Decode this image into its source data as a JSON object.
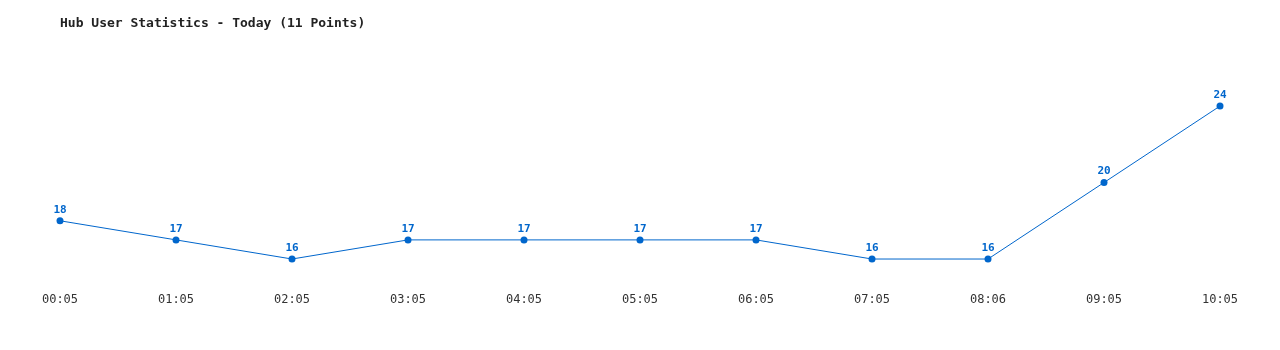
{
  "chart_data": {
    "type": "line",
    "title": "Hub User Statistics - Today (11 Points)",
    "categories": [
      "00:05",
      "01:05",
      "02:05",
      "03:05",
      "04:05",
      "05:05",
      "06:05",
      "07:05",
      "08:06",
      "09:05",
      "10:05"
    ],
    "values": [
      18,
      17,
      16,
      17,
      17,
      17,
      17,
      16,
      16,
      20,
      24
    ],
    "color": "#0066cc",
    "marker": "circle",
    "line_style": "solid",
    "data_labels": true,
    "legend": false
  }
}
